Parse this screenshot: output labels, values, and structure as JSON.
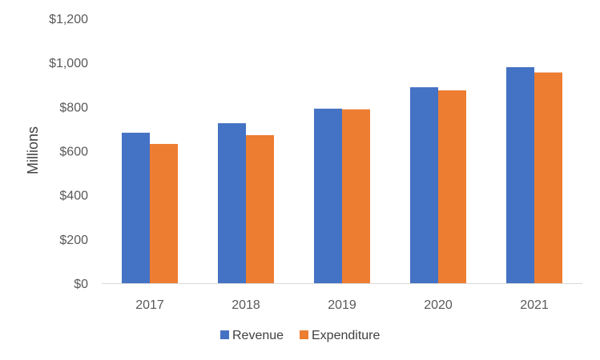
{
  "chart_data": {
    "type": "bar",
    "title": "",
    "xlabel": "",
    "ylabel": "Millions",
    "categories": [
      "2017",
      "2018",
      "2019",
      "2020",
      "2021"
    ],
    "series": [
      {
        "name": "Revenue",
        "color": "#4472C4",
        "values": [
          682,
          725,
          791,
          888,
          979
        ]
      },
      {
        "name": "Expenditure",
        "color": "#ED7D31",
        "values": [
          631,
          671,
          788,
          874,
          955
        ]
      }
    ],
    "ylim": [
      0,
      1200
    ],
    "yticks": [
      0,
      200,
      400,
      600,
      800,
      1000,
      1200
    ],
    "ytick_labels": [
      "$0",
      "$200",
      "$400",
      "$600",
      "$800",
      "$1,000",
      "$1,200"
    ],
    "grid": false,
    "legend": {
      "position": "bottom"
    }
  }
}
